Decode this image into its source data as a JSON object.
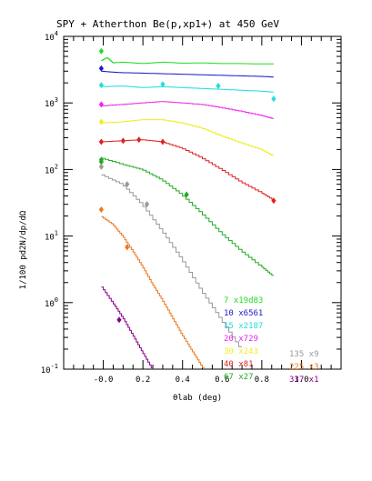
{
  "chart_data": {
    "type": "line",
    "title": "SPY + Atherthon Be(p,xp1+) at 450 GeV",
    "xlabel": "θlab (deg)",
    "ylabel": "1/100 pd2N/dp/dΩ",
    "xlim": [
      -0.2,
      1.2
    ],
    "ylim": [
      0.1,
      10000
    ],
    "yscale": "log",
    "x_ticks": [
      "-0.0",
      "0.2",
      "0.4",
      "0.6",
      "0.8",
      "1.0"
    ],
    "y_ticks": [
      {
        "base": "10",
        "exp": "-1"
      },
      {
        "base": "10",
        "exp": "0"
      },
      {
        "base": "10",
        "exp": "1"
      },
      {
        "base": "10",
        "exp": "2"
      },
      {
        "base": "10",
        "exp": "3"
      },
      {
        "base": "10",
        "exp": "4"
      }
    ],
    "colors": {
      "7": "#22dd22",
      "10": "#1a1acc",
      "15": "#22dddd",
      "20": "#ee22ee",
      "30": "#eeee22",
      "40": "#dd2222",
      "67": "#22aa22",
      "135": "#999999",
      "225": "#ee7722",
      "337": "#880088"
    },
    "legend_placement": "bottom-right",
    "series": [
      {
        "name": "7 x19d83",
        "key": "7",
        "x": [
          -0.01,
          0.02,
          0.05,
          0.1,
          0.2,
          0.3,
          0.4,
          0.5,
          0.6,
          0.7,
          0.8,
          0.86
        ],
        "y": [
          4300,
          4800,
          4000,
          4100,
          3900,
          4100,
          3950,
          4000,
          3900,
          3900,
          3850,
          3850
        ],
        "pts_x": [
          -0.01
        ],
        "pts_y": [
          6000
        ]
      },
      {
        "name": "10 x6561",
        "key": "10",
        "x": [
          -0.01,
          0.05,
          0.1,
          0.2,
          0.3,
          0.4,
          0.5,
          0.6,
          0.7,
          0.8,
          0.86
        ],
        "y": [
          3000,
          2900,
          2850,
          2800,
          2750,
          2700,
          2650,
          2600,
          2550,
          2500,
          2450
        ],
        "pts_x": [
          -0.01
        ],
        "pts_y": [
          3300
        ]
      },
      {
        "name": "15 x2187",
        "key": "15",
        "x": [
          -0.01,
          0.1,
          0.2,
          0.3,
          0.4,
          0.5,
          0.6,
          0.7,
          0.8,
          0.86
        ],
        "y": [
          1750,
          1800,
          1700,
          1750,
          1700,
          1650,
          1600,
          1550,
          1500,
          1450
        ],
        "pts_x": [
          -0.01,
          0.3,
          0.58,
          0.86
        ],
        "pts_y": [
          1850,
          1900,
          1800,
          1150
        ]
      },
      {
        "name": "20 x729",
        "key": "20",
        "x": [
          -0.01,
          0.1,
          0.2,
          0.3,
          0.4,
          0.5,
          0.6,
          0.7,
          0.8,
          0.86
        ],
        "y": [
          900,
          950,
          1000,
          1050,
          1000,
          950,
          850,
          750,
          650,
          580
        ],
        "pts_x": [
          -0.01
        ],
        "pts_y": [
          950
        ]
      },
      {
        "name": "30 x243",
        "key": "30",
        "x": [
          -0.01,
          0.1,
          0.2,
          0.3,
          0.4,
          0.5,
          0.6,
          0.7,
          0.8,
          0.86
        ],
        "y": [
          500,
          520,
          560,
          560,
          500,
          420,
          320,
          250,
          200,
          160
        ],
        "pts_x": [
          -0.01
        ],
        "pts_y": [
          520
        ]
      },
      {
        "name": "40 x81",
        "key": "40",
        "x": [
          -0.01,
          0.1,
          0.2,
          0.3,
          0.4,
          0.5,
          0.6,
          0.7,
          0.8,
          0.86
        ],
        "y": [
          260,
          270,
          280,
          260,
          210,
          150,
          100,
          65,
          45,
          35
        ],
        "pts_x": [
          -0.01,
          0.1,
          0.18,
          0.3,
          0.86
        ],
        "pts_y": [
          260,
          270,
          280,
          260,
          34
        ]
      },
      {
        "name": "67 x27",
        "key": "67",
        "x": [
          -0.01,
          0.1,
          0.2,
          0.3,
          0.4,
          0.5,
          0.6,
          0.7,
          0.8,
          0.86
        ],
        "y": [
          150,
          120,
          100,
          70,
          42,
          22,
          11,
          6,
          3.5,
          2.5
        ],
        "pts_x": [
          -0.01,
          -0.01,
          0.42
        ],
        "pts_y": [
          140,
          130,
          42
        ]
      },
      {
        "name": "135 x9",
        "key": "135",
        "x": [
          -0.01,
          0.1,
          0.2,
          0.3,
          0.4,
          0.5,
          0.6,
          0.7
        ],
        "y": [
          85,
          60,
          30,
          12,
          4.5,
          1.5,
          0.55,
          0.2
        ],
        "pts_x": [
          -0.01,
          0.12,
          0.22
        ],
        "pts_y": [
          110,
          60,
          30
        ]
      },
      {
        "name": "225 x3",
        "key": "225",
        "x": [
          -0.01,
          0.05,
          0.1,
          0.15,
          0.2,
          0.25,
          0.3,
          0.35,
          0.4,
          0.45,
          0.5,
          0.55
        ],
        "y": [
          20,
          15,
          10,
          6,
          3.5,
          1.9,
          1.1,
          0.6,
          0.33,
          0.19,
          0.11,
          0.07
        ],
        "pts_x": [
          -0.01,
          0.12
        ],
        "pts_y": [
          25,
          6.8
        ]
      },
      {
        "name": "337 x1",
        "key": "337",
        "x": [
          -0.01,
          0.05,
          0.1,
          0.15,
          0.2,
          0.25,
          0.3
        ],
        "y": [
          1.8,
          1.0,
          0.6,
          0.33,
          0.18,
          0.1,
          0.06
        ],
        "pts_x": [
          0.08
        ],
        "pts_y": [
          0.55
        ]
      }
    ],
    "legend": [
      {
        "text": "7  x19d83",
        "key": "7"
      },
      {
        "text": "10  x6561",
        "key": "10"
      },
      {
        "text": "15  x2187",
        "key": "15"
      },
      {
        "text": "20  x729",
        "key": "20"
      },
      {
        "text": "30  x243",
        "key": "30"
      },
      {
        "text": "40  x81",
        "key": "40"
      },
      {
        "text": "67  x27",
        "key": "67"
      },
      {
        "text": "135  x9",
        "key": "135"
      },
      {
        "text": "225  x3",
        "key": "225"
      },
      {
        "text": "337  x1",
        "key": "337"
      }
    ]
  }
}
